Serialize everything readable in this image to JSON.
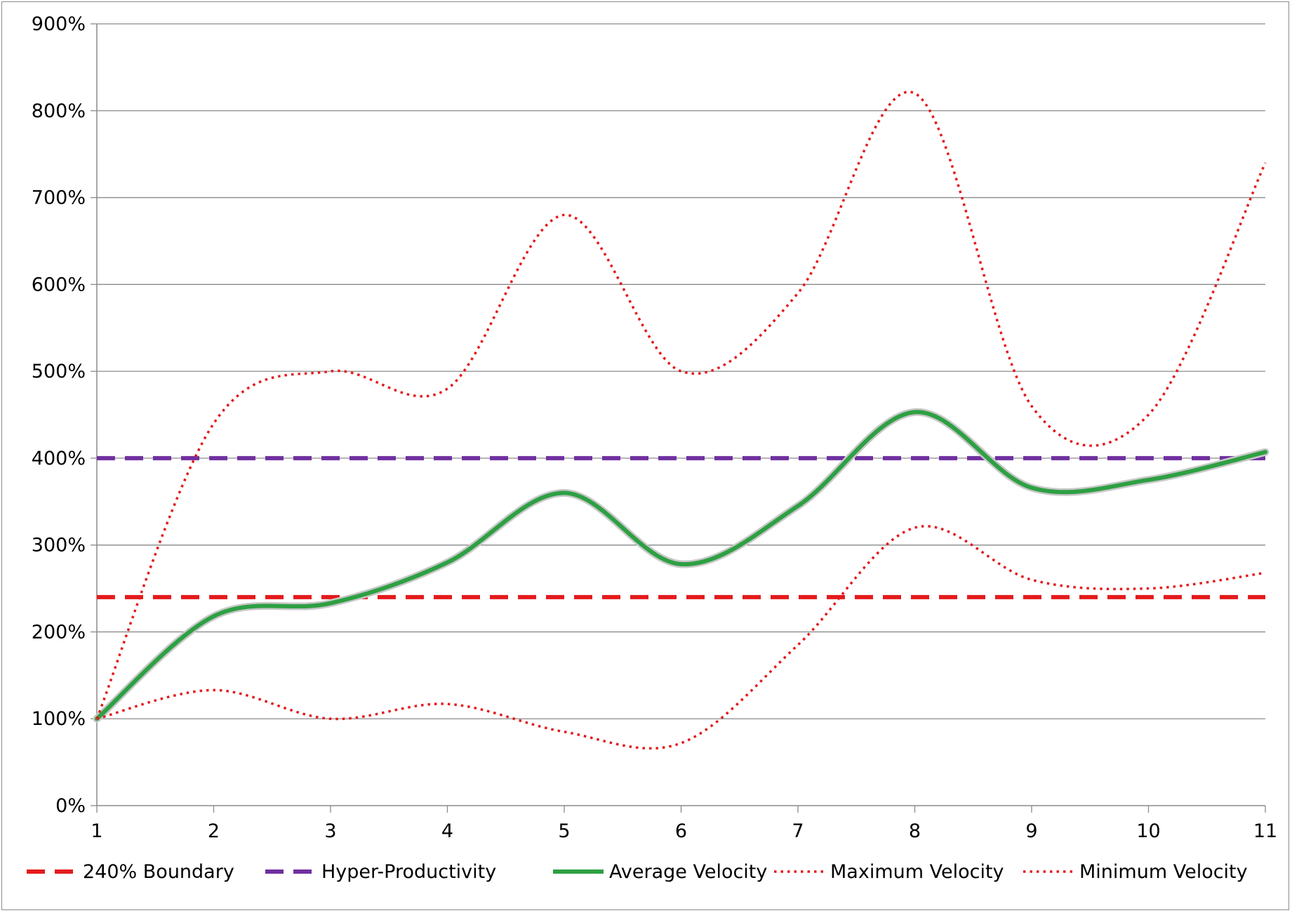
{
  "chart_data": {
    "type": "line",
    "x": [
      1,
      2,
      3,
      4,
      5,
      6,
      7,
      8,
      9,
      10,
      11
    ],
    "ylim": [
      0,
      900
    ],
    "y_ticks": [
      "0%",
      "100%",
      "200%",
      "300%",
      "400%",
      "500%",
      "600%",
      "700%",
      "800%",
      "900%"
    ],
    "x_ticks": [
      "1",
      "2",
      "3",
      "4",
      "5",
      "6",
      "7",
      "8",
      "9",
      "10",
      "11"
    ],
    "grid": "horizontal",
    "legend_position": "bottom",
    "series": [
      {
        "name": "240% Boundary",
        "values": [
          240,
          240,
          240,
          240,
          240,
          240,
          240,
          240,
          240,
          240,
          240
        ],
        "color": "#e41a1c",
        "style": "dashed"
      },
      {
        "name": "Hyper-Productivity",
        "values": [
          400,
          400,
          400,
          400,
          400,
          400,
          400,
          400,
          400,
          400,
          400
        ],
        "color": "#7030a0",
        "style": "dashed"
      },
      {
        "name": "Average Velocity",
        "values": [
          100,
          218,
          233,
          280,
          360,
          278,
          345,
          453,
          366,
          375,
          407
        ],
        "color": "#2ea043",
        "style": "solid"
      },
      {
        "name": "Maximum Velocity",
        "values": [
          100,
          440,
          500,
          480,
          680,
          500,
          590,
          820,
          460,
          450,
          740
        ],
        "color": "#e41a1c",
        "style": "dotted"
      },
      {
        "name": "Minimum Velocity",
        "values": [
          100,
          133,
          100,
          117,
          85,
          72,
          185,
          320,
          260,
          250,
          268
        ],
        "color": "#e41a1c",
        "style": "dotted"
      }
    ]
  }
}
